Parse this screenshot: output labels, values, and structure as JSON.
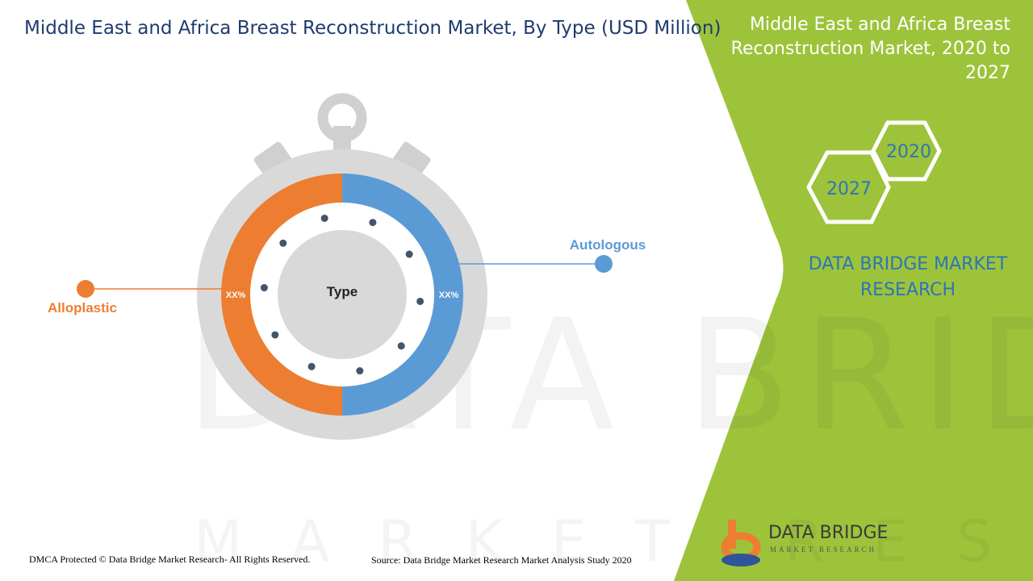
{
  "header": {
    "title": "Middle East and Africa Breast Reconstruction Market, By Type (USD Million)"
  },
  "side_panel": {
    "title": "Middle East and Africa Breast Reconstruction Market, 2020 to 2027",
    "hex_years": [
      "2020",
      "2027"
    ],
    "brand_line1": "DATA BRIDGE MARKET",
    "brand_line2": "RESEARCH"
  },
  "footer": {
    "copyright": "DMCA Protected © Data Bridge Market Research- All Rights Reserved.",
    "source": "Source: Data Bridge Market Research Market Analysis Study 2020"
  },
  "logo": {
    "name": "DATA BRIDGE",
    "tagline": "MARKET RESEARCH"
  },
  "watermark": {
    "big": "DATA BRIDGE",
    "small": "MARKET RESEARCH"
  },
  "colors": {
    "green": "#9dc33b",
    "orange": "#ed7d31",
    "blue": "#5b9bd5",
    "gray": "#d9d9d9",
    "title_blue": "#1f3b70",
    "brand_blue": "#2e75b6"
  },
  "chart_data": {
    "type": "pie",
    "title": "",
    "center_label": "Type",
    "categories": [
      "Autologous",
      "Alloplastic"
    ],
    "values": [
      50,
      50
    ],
    "data_labels": [
      "XX%",
      "XX%"
    ],
    "colors": [
      "#5b9bd5",
      "#ed7d31"
    ],
    "legend": "callouts"
  }
}
